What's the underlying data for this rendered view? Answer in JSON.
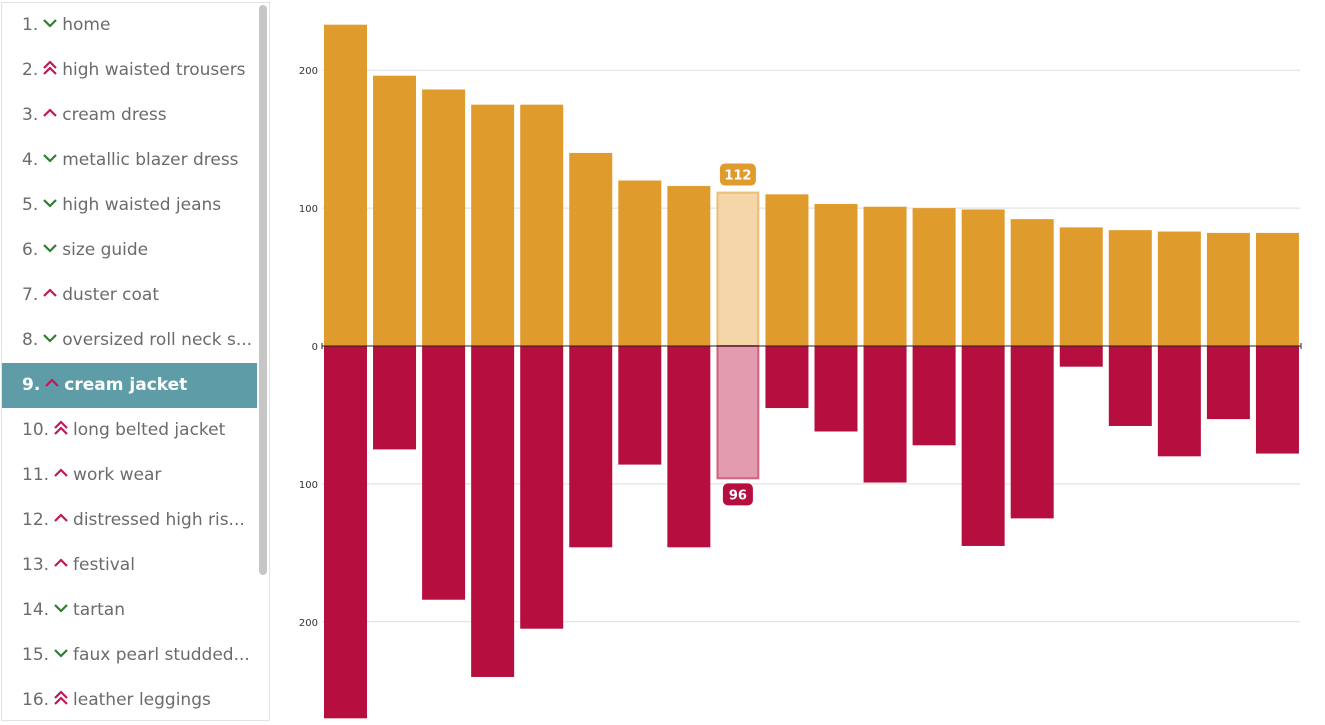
{
  "sidebar": {
    "items": [
      {
        "rank": "1.",
        "label": "home",
        "trend": "down"
      },
      {
        "rank": "2.",
        "label": "high waisted trousers",
        "trend": "double-up"
      },
      {
        "rank": "3.",
        "label": "cream dress",
        "trend": "up"
      },
      {
        "rank": "4.",
        "label": "metallic blazer dress",
        "trend": "down"
      },
      {
        "rank": "5.",
        "label": "high waisted jeans",
        "trend": "down"
      },
      {
        "rank": "6.",
        "label": "size guide",
        "trend": "down"
      },
      {
        "rank": "7.",
        "label": "duster coat",
        "trend": "up"
      },
      {
        "rank": "8.",
        "label": "oversized roll neck s...",
        "trend": "down"
      },
      {
        "rank": "9.",
        "label": "cream jacket",
        "trend": "up",
        "selected": true
      },
      {
        "rank": "10.",
        "label": "long belted jacket",
        "trend": "double-up"
      },
      {
        "rank": "11.",
        "label": "work wear",
        "trend": "up"
      },
      {
        "rank": "12.",
        "label": "distressed high ris...",
        "trend": "up"
      },
      {
        "rank": "13.",
        "label": "festival",
        "trend": "up"
      },
      {
        "rank": "14.",
        "label": "tartan",
        "trend": "down"
      },
      {
        "rank": "15.",
        "label": "faux pearl studded...",
        "trend": "down"
      },
      {
        "rank": "16.",
        "label": "leather leggings",
        "trend": "double-up"
      }
    ],
    "icons": {
      "down": "chevron-down-icon",
      "up": "chevron-up-icon",
      "double-up": "double-chevron-up-icon"
    }
  },
  "colors": {
    "positive": "#e09b2d",
    "negative": "#b50e3f",
    "positive_highlight": "#f4d6a9",
    "negative_highlight": "#e39bb0",
    "up_arrow": "#c2185b",
    "down_arrow": "#2e7d32",
    "selected_row": "#5e9ca7",
    "grid": "#dddddd"
  },
  "chart_data": {
    "type": "bar",
    "xlabel": "",
    "ylabel": "",
    "ylim": [
      -270,
      235
    ],
    "yticks": [
      {
        "value": 200,
        "label": "200"
      },
      {
        "value": 100,
        "label": "100"
      },
      {
        "value": 0,
        "label": "0"
      },
      {
        "value": -100,
        "label": "100"
      },
      {
        "value": -200,
        "label": "200"
      }
    ],
    "grid": true,
    "highlight_index": 8,
    "highlight_labels": {
      "positive": "112",
      "negative": "96"
    },
    "series": [
      {
        "values": [
          233,
          196,
          186,
          175,
          175,
          140,
          120,
          116,
          112,
          110,
          103,
          101,
          100,
          99,
          92,
          86,
          84,
          83,
          82,
          82
        ]
      },
      {
        "values": [
          -270,
          -75,
          -184,
          -240,
          -205,
          -146,
          -86,
          -146,
          -96,
          -45,
          -62,
          -99,
          -72,
          -145,
          -125,
          -15,
          -58,
          -80,
          -53,
          -78
        ]
      }
    ]
  }
}
